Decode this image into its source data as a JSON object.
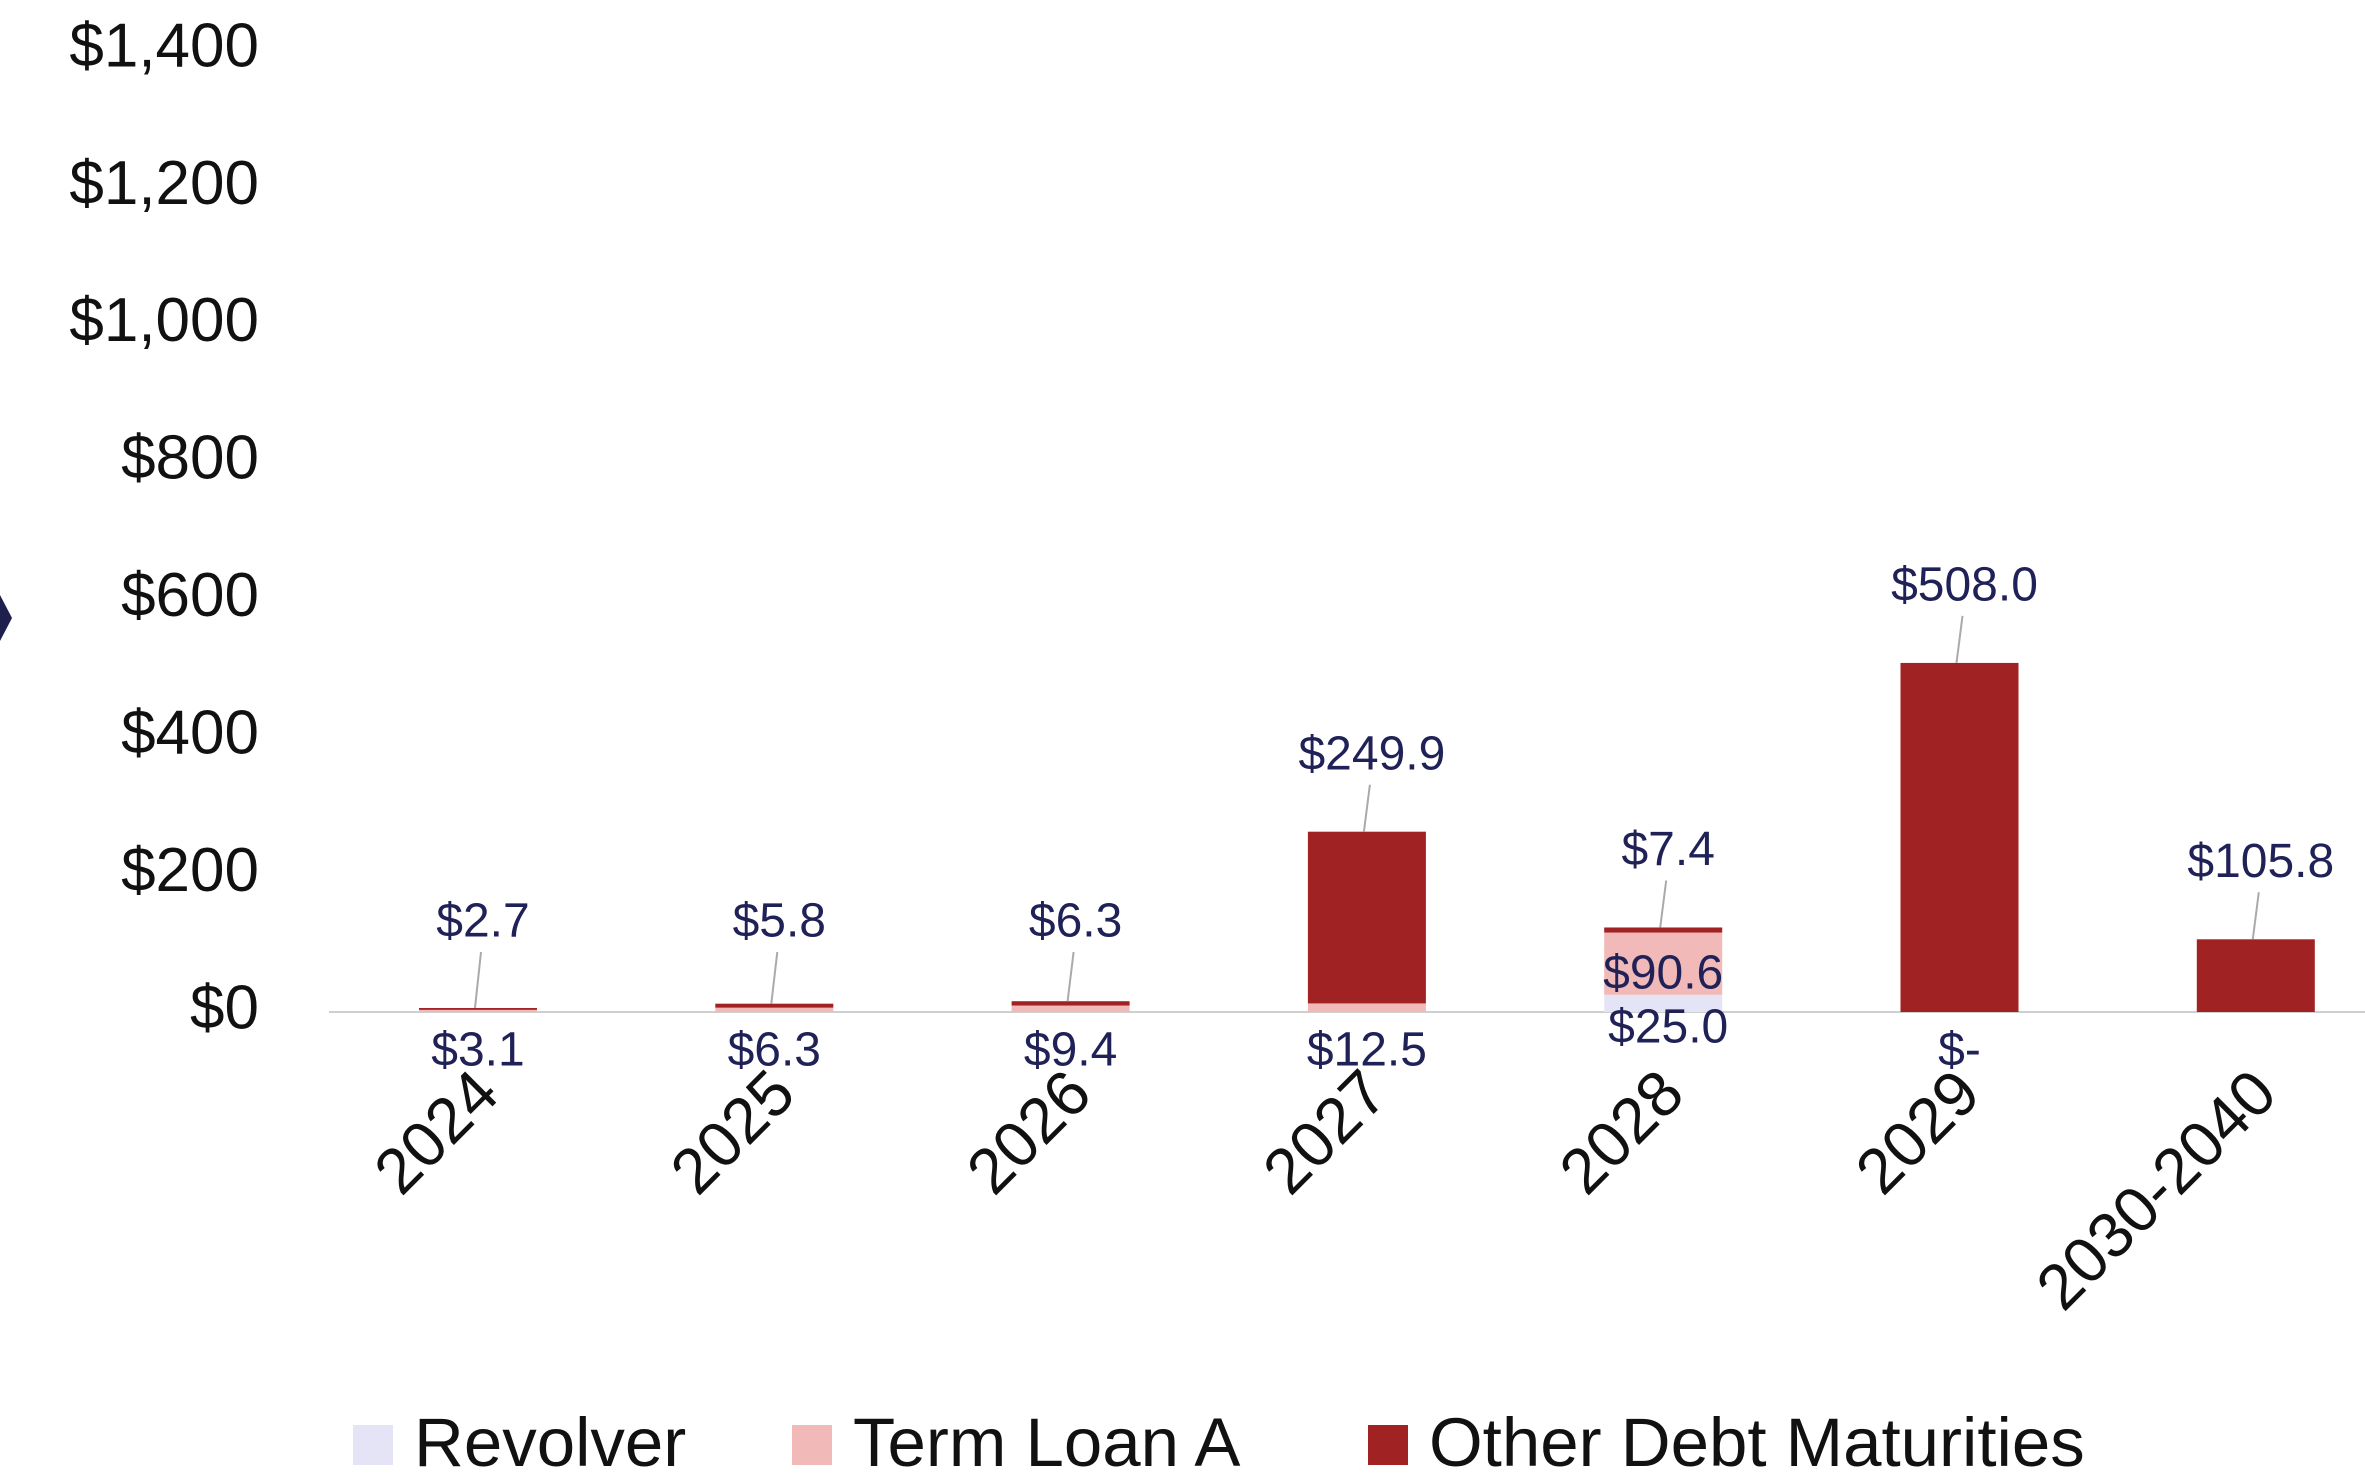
{
  "chart_data": {
    "type": "stacked-bar",
    "categories": [
      "2024",
      "2025",
      "2026",
      "2027",
      "2028",
      "2029",
      "2030-2040"
    ],
    "series": [
      {
        "name": "Revolver",
        "color": "#e4e4f6",
        "values": [
          0,
          0,
          0,
          0,
          25.0,
          0,
          0
        ],
        "value_labels": [
          null,
          null,
          null,
          null,
          "$25.0",
          null,
          null
        ]
      },
      {
        "name": "Term Loan A",
        "color": "#f2b9b9",
        "values": [
          3.1,
          6.3,
          9.4,
          12.5,
          90.6,
          0,
          0
        ],
        "value_labels": [
          "$3.1",
          "$6.3",
          "$9.4",
          "$12.5",
          "$90.6",
          "$-",
          null
        ]
      },
      {
        "name": "Other Debt Maturities",
        "color": "#a02222",
        "values": [
          2.7,
          5.8,
          6.3,
          249.9,
          7.4,
          508.0,
          105.8
        ],
        "value_labels": [
          "$2.7",
          "$5.8",
          "$6.3",
          "$249.9",
          "$7.4",
          "$508.0",
          "$105.8"
        ]
      }
    ],
    "ylim": [
      0,
      1400
    ],
    "yticks": [
      {
        "value": 0,
        "label": "$0"
      },
      {
        "value": 200,
        "label": "$200"
      },
      {
        "value": 400,
        "label": "$400"
      },
      {
        "value": 600,
        "label": "$600"
      },
      {
        "value": 800,
        "label": "$800"
      },
      {
        "value": 1000,
        "label": "$1,000"
      },
      {
        "value": 1200,
        "label": "$1,200"
      },
      {
        "value": 1400,
        "label": "$1,400"
      }
    ],
    "legend": "bottom"
  }
}
